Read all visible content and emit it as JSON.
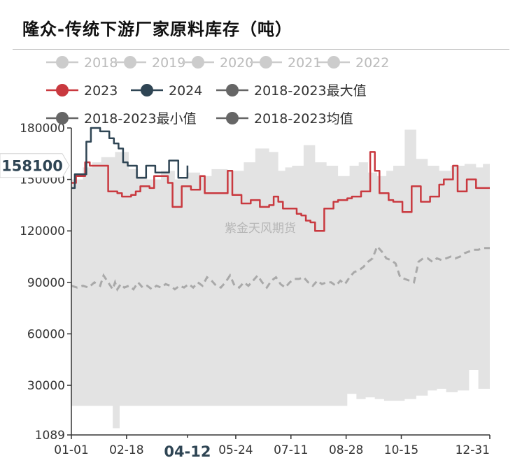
{
  "title": "隆众-传统下游厂家原料库存（吨）",
  "watermark": "紫金天风期货",
  "colors": {
    "band": "#e3e3e3",
    "y2023": "#c9393f",
    "y2024": "#2f4554",
    "avg": "#a9a9a9",
    "legend_inactive": "#cccccc",
    "legend_max": "#666666",
    "axis": "#333333"
  },
  "legend": [
    {
      "label": "2018",
      "color": "#cccccc",
      "text_color": "#bbbbbb"
    },
    {
      "label": "2019",
      "color": "#cccccc",
      "text_color": "#bbbbbb"
    },
    {
      "label": "2020",
      "color": "#cccccc",
      "text_color": "#bbbbbb"
    },
    {
      "label": "2021",
      "color": "#cccccc",
      "text_color": "#bbbbbb"
    },
    {
      "label": "2022",
      "color": "#cccccc",
      "text_color": "#bbbbbb"
    },
    {
      "label": "2023",
      "color": "#c9393f",
      "text_color": "#333333"
    },
    {
      "label": "2024",
      "color": "#2f4554",
      "text_color": "#333333"
    },
    {
      "label": "2018-2023最大值",
      "color": "#666666",
      "text_color": "#333333"
    },
    {
      "label": "2018-2023最小值",
      "color": "#666666",
      "text_color": "#333333"
    },
    {
      "label": "2018-2023均值",
      "color": "#666666",
      "text_color": "#333333"
    }
  ],
  "chart_data": {
    "type": "line",
    "ylim": [
      1089,
      180000
    ],
    "y_ticks": [
      1089,
      30000,
      60000,
      90000,
      120000,
      150000,
      180000
    ],
    "x_ticks": [
      {
        "label": "01-01",
        "day": 0
      },
      {
        "label": "02-18",
        "day": 48
      },
      {
        "label": "04-12",
        "day": 101
      },
      {
        "label": "05-24",
        "day": 143
      },
      {
        "label": "07-11",
        "day": 191
      },
      {
        "label": "08-28",
        "day": 239
      },
      {
        "label": "10-15",
        "day": 287
      },
      {
        "label": "12-31",
        "day": 364
      }
    ],
    "highlighted_x_label": "04-12",
    "highlighted_y_value": "158100",
    "band_max": {
      "name": "2018-2023最大值",
      "x": [
        0,
        10,
        18,
        26,
        38,
        50,
        58,
        66,
        78,
        90,
        100,
        112,
        122,
        136,
        150,
        160,
        172,
        180,
        186,
        192,
        202,
        212,
        222,
        232,
        242,
        250,
        258,
        266,
        274,
        280,
        290,
        300,
        310,
        320,
        330,
        342,
        352,
        358,
        364
      ],
      "y": [
        150000,
        157000,
        160000,
        163000,
        166000,
        156000,
        152000,
        150000,
        155000,
        150000,
        154000,
        152000,
        156000,
        155000,
        160000,
        168000,
        166000,
        155000,
        157000,
        158000,
        170000,
        160000,
        158000,
        152000,
        158000,
        160000,
        154000,
        152000,
        155000,
        158000,
        179000,
        162000,
        158000,
        155000,
        158000,
        159000,
        157000,
        159000,
        158000
      ]
    },
    "band_min": {
      "name": "2018-2023最小值",
      "x": [
        0,
        36,
        38,
        42,
        44,
        80,
        120,
        160,
        200,
        240,
        248,
        256,
        264,
        272,
        280,
        290,
        300,
        310,
        318,
        326,
        336,
        346,
        354,
        358,
        364
      ],
      "y": [
        18000,
        18000,
        5000,
        5000,
        18000,
        18000,
        18000,
        18000,
        18000,
        18000,
        25000,
        22000,
        23000,
        22000,
        21000,
        21000,
        22000,
        24000,
        27000,
        28000,
        26000,
        27000,
        39000,
        28000,
        28000
      ]
    },
    "series": [
      {
        "name": "2023",
        "x": [
          0,
          4,
          8,
          12,
          16,
          20,
          24,
          28,
          32,
          36,
          40,
          44,
          48,
          52,
          56,
          60,
          64,
          68,
          72,
          76,
          80,
          84,
          88,
          92,
          96,
          100,
          104,
          108,
          112,
          116,
          120,
          124,
          128,
          132,
          136,
          140,
          144,
          148,
          152,
          156,
          160,
          164,
          168,
          172,
          176,
          180,
          184,
          188,
          192,
          196,
          200,
          204,
          208,
          212,
          216,
          220,
          224,
          228,
          232,
          236,
          240,
          244,
          248,
          252,
          256,
          260,
          264,
          268,
          272,
          276,
          280,
          284,
          288,
          292,
          296,
          300,
          304,
          308,
          312,
          316,
          320,
          324,
          328,
          332,
          336,
          340,
          344,
          348,
          352,
          356,
          360,
          364
        ],
        "y": [
          148000,
          152000,
          152000,
          160000,
          158000,
          158000,
          158000,
          158000,
          143000,
          143000,
          142000,
          140000,
          140000,
          141000,
          143000,
          146000,
          146000,
          145000,
          152000,
          152000,
          152000,
          148000,
          134000,
          134000,
          146000,
          146000,
          144000,
          144000,
          152000,
          142000,
          142000,
          142000,
          142000,
          142000,
          155000,
          141000,
          141000,
          136000,
          136000,
          138000,
          138000,
          134000,
          134000,
          135000,
          140000,
          137000,
          133000,
          133000,
          133000,
          130000,
          129000,
          126000,
          125000,
          120000,
          120000,
          133000,
          133000,
          137000,
          138000,
          138000,
          139000,
          140000,
          140000,
          143000,
          143000,
          166000,
          155000,
          142000,
          142000,
          138000,
          137000,
          137000,
          131000,
          131000,
          146000,
          146000,
          137000,
          137000,
          140000,
          140000,
          147000,
          150000,
          150000,
          158000,
          143000,
          143000,
          150000,
          150000,
          145000,
          145000,
          145000,
          145000
        ]
      },
      {
        "name": "2024",
        "x": [
          0,
          3,
          5,
          9,
          13,
          17,
          21,
          25,
          29,
          33,
          37,
          41,
          45,
          49,
          53,
          57,
          61,
          65,
          69,
          73,
          77,
          81,
          85,
          89,
          93,
          97,
          101
        ],
        "y": [
          145000,
          153000,
          153000,
          153000,
          172000,
          180000,
          180000,
          178000,
          178000,
          174000,
          171000,
          168000,
          160000,
          158000,
          158000,
          151000,
          151000,
          158000,
          158000,
          154000,
          154000,
          154000,
          161000,
          161000,
          151000,
          151000,
          158100
        ]
      },
      {
        "name": "2018-2023均值",
        "x": [
          0,
          5,
          10,
          15,
          20,
          25,
          28,
          32,
          36,
          38,
          40,
          43,
          46,
          50,
          54,
          58,
          62,
          66,
          70,
          74,
          78,
          82,
          86,
          90,
          94,
          98,
          102,
          106,
          110,
          114,
          118,
          122,
          126,
          130,
          134,
          138,
          142,
          146,
          150,
          154,
          158,
          162,
          166,
          170,
          174,
          178,
          182,
          186,
          190,
          194,
          198,
          202,
          206,
          210,
          214,
          218,
          222,
          226,
          230,
          234,
          238,
          242,
          246,
          250,
          254,
          258,
          262,
          266,
          270,
          274,
          278,
          282,
          286,
          290,
          294,
          298,
          302,
          306,
          310,
          314,
          318,
          322,
          326,
          330,
          334,
          338,
          342,
          346,
          350,
          354,
          358,
          362,
          364
        ],
        "y": [
          88000,
          87000,
          88000,
          87000,
          90000,
          88000,
          94000,
          90000,
          86000,
          90000,
          86000,
          89000,
          87000,
          88000,
          86000,
          90000,
          87000,
          88000,
          86000,
          88000,
          87000,
          89000,
          88000,
          86000,
          88000,
          87000,
          89000,
          87000,
          90000,
          88000,
          93000,
          91000,
          88000,
          87000,
          90000,
          94000,
          88000,
          87000,
          90000,
          88000,
          91000,
          94000,
          90000,
          87000,
          91000,
          93000,
          89000,
          87000,
          90000,
          92000,
          92000,
          93000,
          90000,
          88000,
          91000,
          89000,
          90000,
          90000,
          88000,
          91000,
          89000,
          93000,
          96000,
          97000,
          99000,
          102000,
          104000,
          111000,
          108000,
          104000,
          103000,
          101000,
          93000,
          92000,
          91000,
          90000,
          102000,
          104000,
          104000,
          102000,
          104000,
          103000,
          104000,
          105000,
          104000,
          105000,
          107000,
          108000,
          109000,
          109000,
          110000,
          110000,
          110000
        ]
      }
    ]
  }
}
